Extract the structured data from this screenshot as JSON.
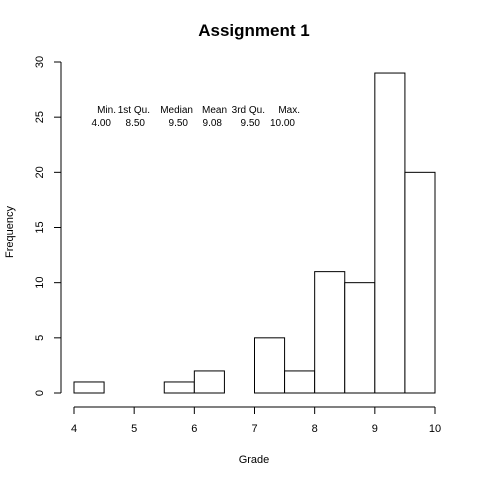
{
  "chart_data": {
    "type": "bar",
    "title": "Assignment 1",
    "xlabel": "Grade",
    "ylabel": "Frequency",
    "xlim": [
      4,
      10
    ],
    "ylim": [
      0,
      30
    ],
    "x_ticks": [
      "4",
      "5",
      "6",
      "7",
      "8",
      "9",
      "10"
    ],
    "y_ticks": [
      "0",
      "5",
      "10",
      "15",
      "20",
      "25",
      "30"
    ],
    "bins": [
      {
        "from": 4.0,
        "to": 4.5,
        "count": 1
      },
      {
        "from": 4.5,
        "to": 5.0,
        "count": 0
      },
      {
        "from": 5.0,
        "to": 5.5,
        "count": 0
      },
      {
        "from": 5.5,
        "to": 6.0,
        "count": 1
      },
      {
        "from": 6.0,
        "to": 6.5,
        "count": 2
      },
      {
        "from": 6.5,
        "to": 7.0,
        "count": 0
      },
      {
        "from": 7.0,
        "to": 7.5,
        "count": 5
      },
      {
        "from": 7.5,
        "to": 8.0,
        "count": 2
      },
      {
        "from": 8.0,
        "to": 8.5,
        "count": 11
      },
      {
        "from": 8.5,
        "to": 9.0,
        "count": 10
      },
      {
        "from": 9.0,
        "to": 9.5,
        "count": 29
      },
      {
        "from": 9.5,
        "to": 10.0,
        "count": 20
      }
    ],
    "summary": {
      "headers": [
        "Min.",
        "1st Qu.",
        "Median",
        "Mean",
        "3rd Qu.",
        "Max."
      ],
      "values": [
        "4.00",
        "8.50",
        "9.50",
        "9.08",
        "9.50",
        "10.00"
      ]
    }
  }
}
